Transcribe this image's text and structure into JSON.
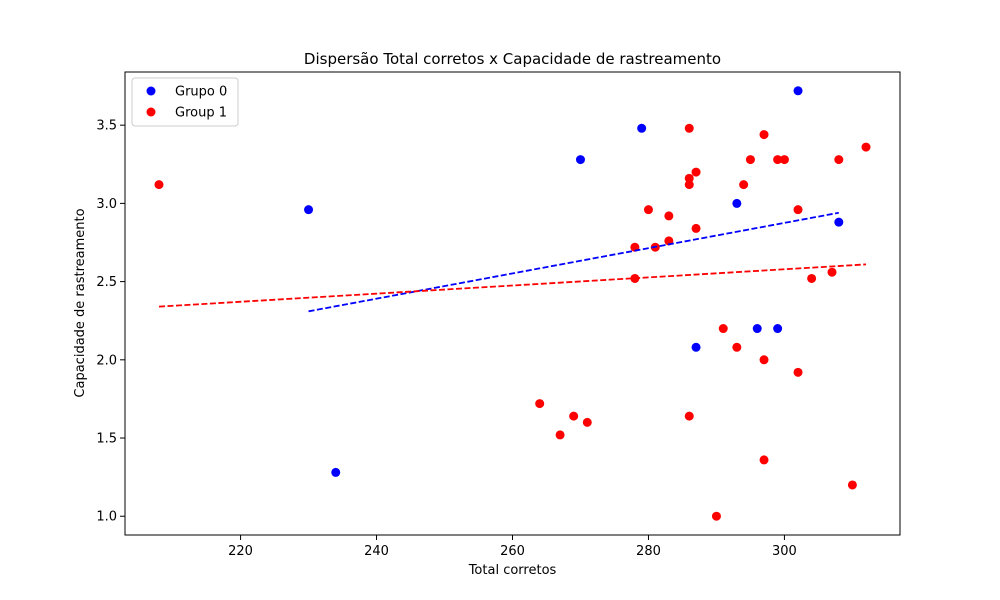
{
  "chart_data": {
    "type": "scatter",
    "title": "Dispersão Total corretos x Capacidade de rastreamento",
    "xlabel": "Total corretos",
    "ylabel": "Capacidade de rastreamento",
    "xlim": [
      203,
      317
    ],
    "ylim": [
      0.88,
      3.84
    ],
    "xticks": [
      220,
      240,
      260,
      280,
      300
    ],
    "yticks": [
      1.0,
      1.5,
      2.0,
      2.5,
      3.0,
      3.5
    ],
    "xtick_labels": [
      "220",
      "240",
      "260",
      "280",
      "300"
    ],
    "ytick_labels": [
      "1.0",
      "1.5",
      "2.0",
      "2.5",
      "3.0",
      "3.5"
    ],
    "legend_position": "top-left",
    "grid": false,
    "series": [
      {
        "name": "Grupo 0",
        "color": "#0000ff",
        "points": [
          [
            230,
            2.96
          ],
          [
            234,
            1.28
          ],
          [
            270,
            3.28
          ],
          [
            279,
            3.48
          ],
          [
            287,
            2.08
          ],
          [
            293,
            3.0
          ],
          [
            296,
            2.2
          ],
          [
            299,
            2.2
          ],
          [
            302,
            3.72
          ],
          [
            308,
            2.88
          ]
        ],
        "trend": {
          "x": [
            230,
            308
          ],
          "y": [
            2.31,
            2.94
          ]
        }
      },
      {
        "name": "Group 1",
        "color": "#ff0000",
        "points": [
          [
            208,
            3.12
          ],
          [
            264,
            1.72
          ],
          [
            267,
            1.52
          ],
          [
            269,
            1.64
          ],
          [
            271,
            1.6
          ],
          [
            278,
            2.72
          ],
          [
            278,
            2.52
          ],
          [
            280,
            2.96
          ],
          [
            281,
            2.72
          ],
          [
            283,
            2.92
          ],
          [
            283,
            2.76
          ],
          [
            286,
            3.48
          ],
          [
            286,
            3.16
          ],
          [
            286,
            3.12
          ],
          [
            286,
            1.64
          ],
          [
            287,
            3.2
          ],
          [
            287,
            2.84
          ],
          [
            290,
            1.0
          ],
          [
            291,
            2.2
          ],
          [
            293,
            2.08
          ],
          [
            294,
            3.12
          ],
          [
            295,
            3.28
          ],
          [
            297,
            3.44
          ],
          [
            297,
            2.0
          ],
          [
            297,
            1.36
          ],
          [
            299,
            3.28
          ],
          [
            300,
            3.28
          ],
          [
            302,
            2.96
          ],
          [
            302,
            1.92
          ],
          [
            304,
            2.52
          ],
          [
            307,
            2.56
          ],
          [
            308,
            3.28
          ],
          [
            310,
            1.2
          ],
          [
            312,
            3.36
          ]
        ],
        "trend": {
          "x": [
            208,
            312
          ],
          "y": [
            2.34,
            2.61
          ]
        }
      }
    ]
  }
}
